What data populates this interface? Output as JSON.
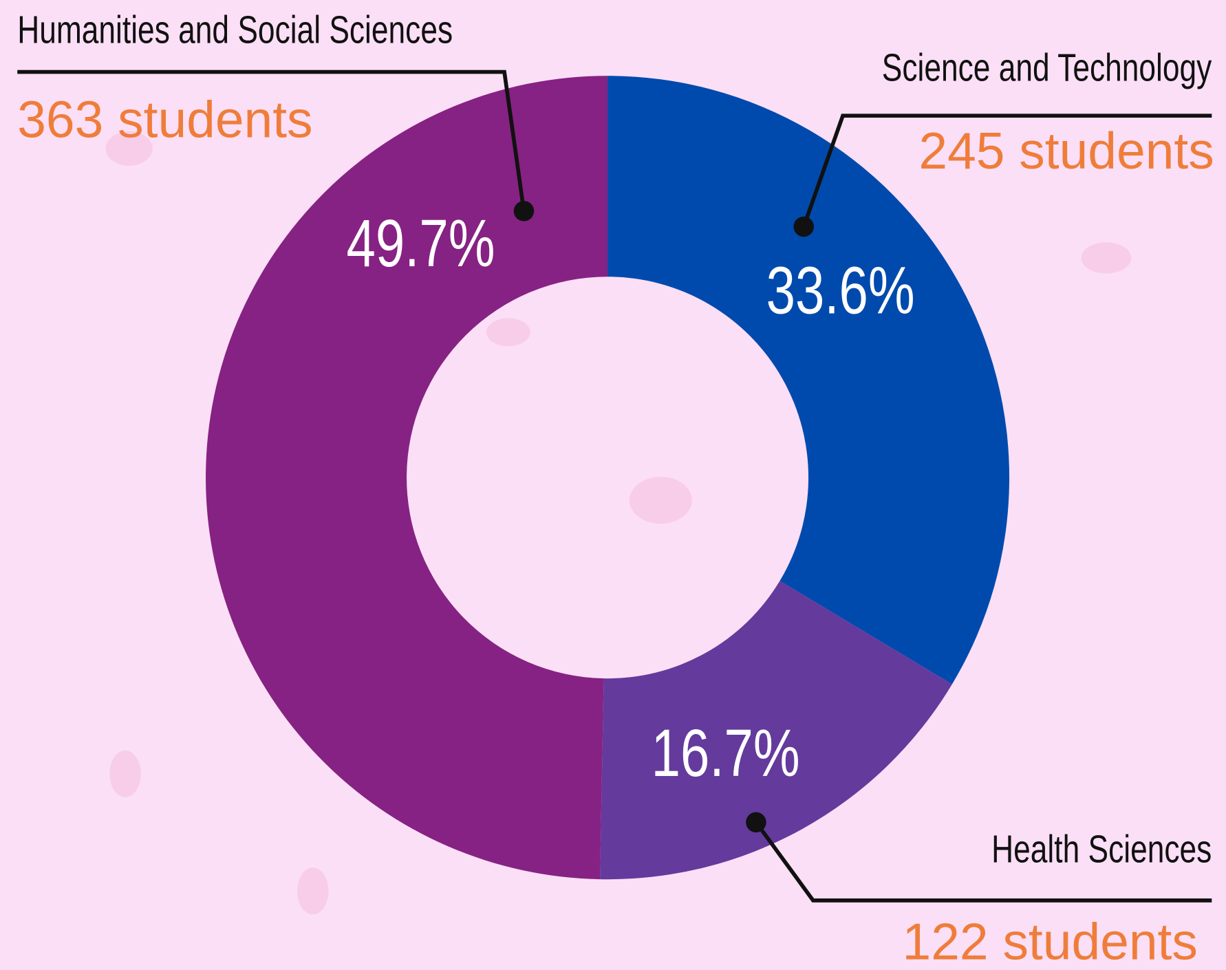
{
  "chart_data": {
    "type": "donut",
    "categories": [
      "Science and Technology",
      "Health Sciences",
      "Humanities and Social Sciences"
    ],
    "values": [
      33.6,
      16.7,
      49.7
    ],
    "value_labels": [
      "33.6%",
      "16.7%",
      "49.7%"
    ],
    "sublabels": [
      "245 students",
      "122 students",
      "363 students"
    ],
    "colors": [
      "#004aad",
      "#643a9d",
      "#862283"
    ]
  }
}
